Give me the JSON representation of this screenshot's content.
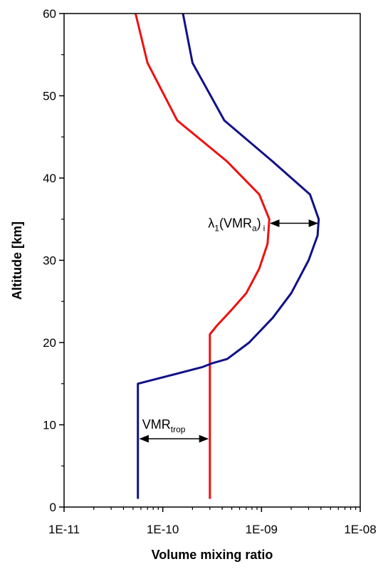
{
  "chart_data": {
    "type": "line",
    "xlabel": "Volume mixing ratio",
    "ylabel": "Altitude [km]",
    "xscale": "log",
    "xlim": [
      1e-11,
      1e-08
    ],
    "ylim": [
      0,
      60
    ],
    "x_tick_labels": [
      "1E-11",
      "1E-10",
      "1E-09",
      "1E-08"
    ],
    "y_tick_labels": [
      "0",
      "10",
      "20",
      "30",
      "40",
      "50",
      "60"
    ],
    "grid": false,
    "series": [
      {
        "color": "#ee1111",
        "points": [
          {
            "x": 3e-10,
            "y": 1
          },
          {
            "x": 3e-10,
            "y": 21
          },
          {
            "x": 3.5e-10,
            "y": 22
          },
          {
            "x": 5e-10,
            "y": 24
          },
          {
            "x": 7e-10,
            "y": 26
          },
          {
            "x": 9.5e-10,
            "y": 29
          },
          {
            "x": 1.15e-09,
            "y": 32
          },
          {
            "x": 1.2e-09,
            "y": 35
          },
          {
            "x": 9.5e-10,
            "y": 38
          },
          {
            "x": 4.5e-10,
            "y": 42
          },
          {
            "x": 1.4e-10,
            "y": 47
          },
          {
            "x": 7e-11,
            "y": 54
          },
          {
            "x": 5.3e-11,
            "y": 60
          }
        ]
      },
      {
        "color": "#111188",
        "points": [
          {
            "x": 5.6e-11,
            "y": 1
          },
          {
            "x": 5.6e-11,
            "y": 15
          },
          {
            "x": 2.5e-10,
            "y": 17
          },
          {
            "x": 3.2e-10,
            "y": 17.5
          },
          {
            "x": 4.5e-10,
            "y": 18
          },
          {
            "x": 7.5e-10,
            "y": 20
          },
          {
            "x": 1.3e-09,
            "y": 23
          },
          {
            "x": 2e-09,
            "y": 26
          },
          {
            "x": 3e-09,
            "y": 30
          },
          {
            "x": 3.7e-09,
            "y": 33
          },
          {
            "x": 3.8e-09,
            "y": 35
          },
          {
            "x": 3.1e-09,
            "y": 38
          },
          {
            "x": 1.3e-09,
            "y": 42
          },
          {
            "x": 4.2e-10,
            "y": 47
          },
          {
            "x": 2e-10,
            "y": 54
          },
          {
            "x": 1.6e-10,
            "y": 60
          }
        ]
      }
    ],
    "annotations": [
      {
        "base": "λ",
        "sub": "1",
        "text_mid": "(VMR",
        "sub2": "a",
        "text_end": ")",
        "sub3": "i",
        "arrow_x": [
          1.2e-09,
          3.8e-09
        ],
        "arrow_y": 34.5
      },
      {
        "base": "VMR",
        "sub": "trop",
        "arrow_x": [
          5.6e-11,
          3e-10
        ],
        "arrow_y": 8.3
      }
    ]
  }
}
